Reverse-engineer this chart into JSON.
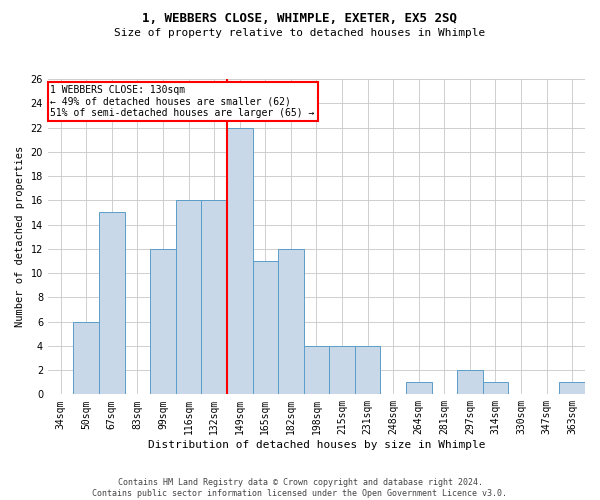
{
  "title": "1, WEBBERS CLOSE, WHIMPLE, EXETER, EX5 2SQ",
  "subtitle": "Size of property relative to detached houses in Whimple",
  "xlabel": "Distribution of detached houses by size in Whimple",
  "ylabel": "Number of detached properties",
  "categories": [
    "34sqm",
    "50sqm",
    "67sqm",
    "83sqm",
    "99sqm",
    "116sqm",
    "132sqm",
    "149sqm",
    "165sqm",
    "182sqm",
    "198sqm",
    "215sqm",
    "231sqm",
    "248sqm",
    "264sqm",
    "281sqm",
    "297sqm",
    "314sqm",
    "330sqm",
    "347sqm",
    "363sqm"
  ],
  "values": [
    0,
    6,
    15,
    0,
    12,
    16,
    16,
    22,
    11,
    12,
    4,
    4,
    4,
    0,
    1,
    0,
    2,
    1,
    0,
    0,
    1
  ],
  "bar_color": "#c8d8e8",
  "bar_edge_color": "#5a9ec9",
  "red_line_bar_index": 7,
  "ylim": [
    0,
    26
  ],
  "yticks": [
    0,
    2,
    4,
    6,
    8,
    10,
    12,
    14,
    16,
    18,
    20,
    22,
    24,
    26
  ],
  "annotation_text": "1 WEBBERS CLOSE: 130sqm\n← 49% of detached houses are smaller (62)\n51% of semi-detached houses are larger (65) →",
  "footer_line1": "Contains HM Land Registry data © Crown copyright and database right 2024.",
  "footer_line2": "Contains public sector information licensed under the Open Government Licence v3.0.",
  "background_color": "#ffffff",
  "grid_color": "#c8c8c8",
  "title_fontsize": 9,
  "subtitle_fontsize": 8,
  "xlabel_fontsize": 8,
  "ylabel_fontsize": 7.5,
  "tick_fontsize": 7,
  "annotation_fontsize": 7,
  "footer_fontsize": 6
}
